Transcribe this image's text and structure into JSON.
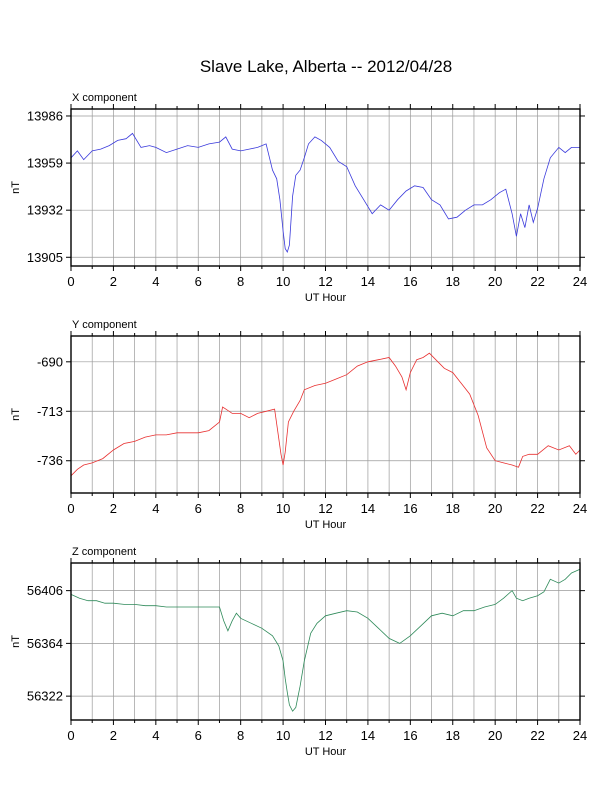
{
  "title": "Slave Lake, Alberta -- 2012/04/28",
  "chart_data": [
    {
      "type": "line",
      "panel_title": "X component",
      "xlabel": "UT Hour",
      "ylabel": "nT",
      "xlim": [
        0,
        24
      ],
      "ylim": [
        13900,
        13990
      ],
      "x_ticks": [
        0,
        2,
        4,
        6,
        8,
        10,
        12,
        14,
        16,
        18,
        20,
        22,
        24
      ],
      "y_ticks": [
        13905,
        13932,
        13959,
        13986
      ],
      "grid": true,
      "color": "#3a3adc",
      "series": [
        {
          "x": [
            0,
            0.3,
            0.6,
            1,
            1.4,
            1.8,
            2.2,
            2.6,
            2.9,
            3.3,
            3.7,
            4,
            4.5,
            5,
            5.5,
            6,
            6.5,
            7,
            7.3,
            7.6,
            8,
            8.4,
            8.8,
            9.2,
            9.5,
            9.7,
            9.85,
            10,
            10.1,
            10.2,
            10.3,
            10.45,
            10.6,
            10.8,
            11,
            11.2,
            11.5,
            11.8,
            12.2,
            12.6,
            13,
            13.4,
            13.8,
            14.2,
            14.6,
            15,
            15.4,
            15.8,
            16.2,
            16.6,
            17,
            17.4,
            17.8,
            18.2,
            18.6,
            19,
            19.4,
            19.8,
            20.2,
            20.5,
            20.8,
            21,
            21.2,
            21.4,
            21.6,
            21.8,
            22,
            22.3,
            22.6,
            23,
            23.3,
            23.6,
            24
          ],
          "y": [
            13962,
            13966,
            13961,
            13966,
            13967,
            13969,
            13972,
            13973,
            13976,
            13968,
            13969,
            13968,
            13965,
            13967,
            13969,
            13968,
            13970,
            13971,
            13974,
            13967,
            13966,
            13967,
            13968,
            13970,
            13955,
            13950,
            13938,
            13920,
            13910,
            13908,
            13912,
            13940,
            13952,
            13955,
            13962,
            13970,
            13974,
            13972,
            13968,
            13960,
            13957,
            13946,
            13938,
            13930,
            13935,
            13932,
            13938,
            13943,
            13946,
            13945,
            13938,
            13935,
            13927,
            13928,
            13932,
            13935,
            13935,
            13938,
            13942,
            13944,
            13930,
            13917,
            13930,
            13922,
            13935,
            13925,
            13933,
            13950,
            13962,
            13968,
            13965,
            13968,
            13968
          ]
        }
      ]
    },
    {
      "type": "line",
      "panel_title": "Y component",
      "xlabel": "UT Hour",
      "ylabel": "nT",
      "xlim": [
        0,
        24
      ],
      "ylim": [
        -751,
        -678
      ],
      "x_ticks": [
        0,
        2,
        4,
        6,
        8,
        10,
        12,
        14,
        16,
        18,
        20,
        22,
        24
      ],
      "y_ticks": [
        -690,
        -713,
        -736
      ],
      "grid": true,
      "color": "#e83030",
      "series": [
        {
          "x": [
            0,
            0.3,
            0.6,
            1,
            1.5,
            2,
            2.5,
            3,
            3.5,
            4,
            4.5,
            5,
            5.5,
            6,
            6.5,
            7,
            7.15,
            7.3,
            7.6,
            8,
            8.4,
            8.8,
            9.2,
            9.6,
            9.9,
            10,
            10.1,
            10.25,
            10.5,
            10.8,
            11,
            11.5,
            12,
            12.5,
            13,
            13.5,
            14,
            14.5,
            15,
            15.3,
            15.6,
            15.8,
            16,
            16.3,
            16.6,
            16.9,
            17.2,
            17.6,
            18,
            18.4,
            18.8,
            19.2,
            19.6,
            20,
            20.4,
            20.8,
            21.1,
            21.3,
            21.6,
            22,
            22.5,
            23,
            23.5,
            23.8,
            24
          ],
          "y": [
            -743,
            -740,
            -738,
            -737,
            -735,
            -731,
            -728,
            -727,
            -725,
            -724,
            -724,
            -723,
            -723,
            -723,
            -722,
            -718,
            -711,
            -712,
            -714,
            -714,
            -716,
            -714,
            -713,
            -712,
            -733,
            -738,
            -732,
            -718,
            -713,
            -708,
            -703,
            -701,
            -700,
            -698,
            -696,
            -692,
            -690,
            -689,
            -688,
            -692,
            -697,
            -703,
            -695,
            -689,
            -688,
            -686,
            -689,
            -693,
            -695,
            -700,
            -705,
            -715,
            -730,
            -736,
            -737,
            -738,
            -739,
            -734,
            -733,
            -733,
            -729,
            -731,
            -729,
            -733,
            -731
          ]
        }
      ]
    },
    {
      "type": "line",
      "panel_title": "Z component",
      "xlabel": "UT Hour",
      "ylabel": "nT",
      "xlim": [
        0,
        24
      ],
      "ylim": [
        56303,
        56428
      ],
      "x_ticks": [
        0,
        2,
        4,
        6,
        8,
        10,
        12,
        14,
        16,
        18,
        20,
        22,
        24
      ],
      "y_ticks": [
        56322,
        56364,
        56406
      ],
      "grid": true,
      "color": "#2f8a5a",
      "series": [
        {
          "x": [
            0,
            0.4,
            0.8,
            1.2,
            1.6,
            2,
            2.5,
            3,
            3.5,
            4,
            4.5,
            5,
            5.5,
            6,
            6.5,
            7,
            7.2,
            7.4,
            7.6,
            7.8,
            8,
            8.5,
            9,
            9.5,
            9.8,
            10,
            10.1,
            10.2,
            10.3,
            10.45,
            10.6,
            10.8,
            11,
            11.3,
            11.6,
            12,
            12.5,
            13,
            13.5,
            14,
            14.5,
            15,
            15.5,
            16,
            16.5,
            17,
            17.5,
            18,
            18.5,
            19,
            19.5,
            20,
            20.4,
            20.8,
            21,
            21.3,
            21.6,
            22,
            22.3,
            22.6,
            23,
            23.3,
            23.6,
            24
          ],
          "y": [
            56403,
            56400,
            56398,
            56398,
            56396,
            56396,
            56395,
            56395,
            56394,
            56394,
            56393,
            56393,
            56393,
            56393,
            56393,
            56393,
            56382,
            56374,
            56382,
            56388,
            56384,
            56380,
            56376,
            56370,
            56362,
            56350,
            56336,
            56325,
            56315,
            56310,
            56313,
            56330,
            56350,
            56372,
            56380,
            56386,
            56388,
            56390,
            56389,
            56384,
            56376,
            56368,
            56364,
            56370,
            56378,
            56386,
            56388,
            56386,
            56390,
            56390,
            56393,
            56395,
            56400,
            56406,
            56400,
            56398,
            56400,
            56402,
            56405,
            56415,
            56412,
            56415,
            56420,
            56423
          ]
        }
      ]
    }
  ]
}
